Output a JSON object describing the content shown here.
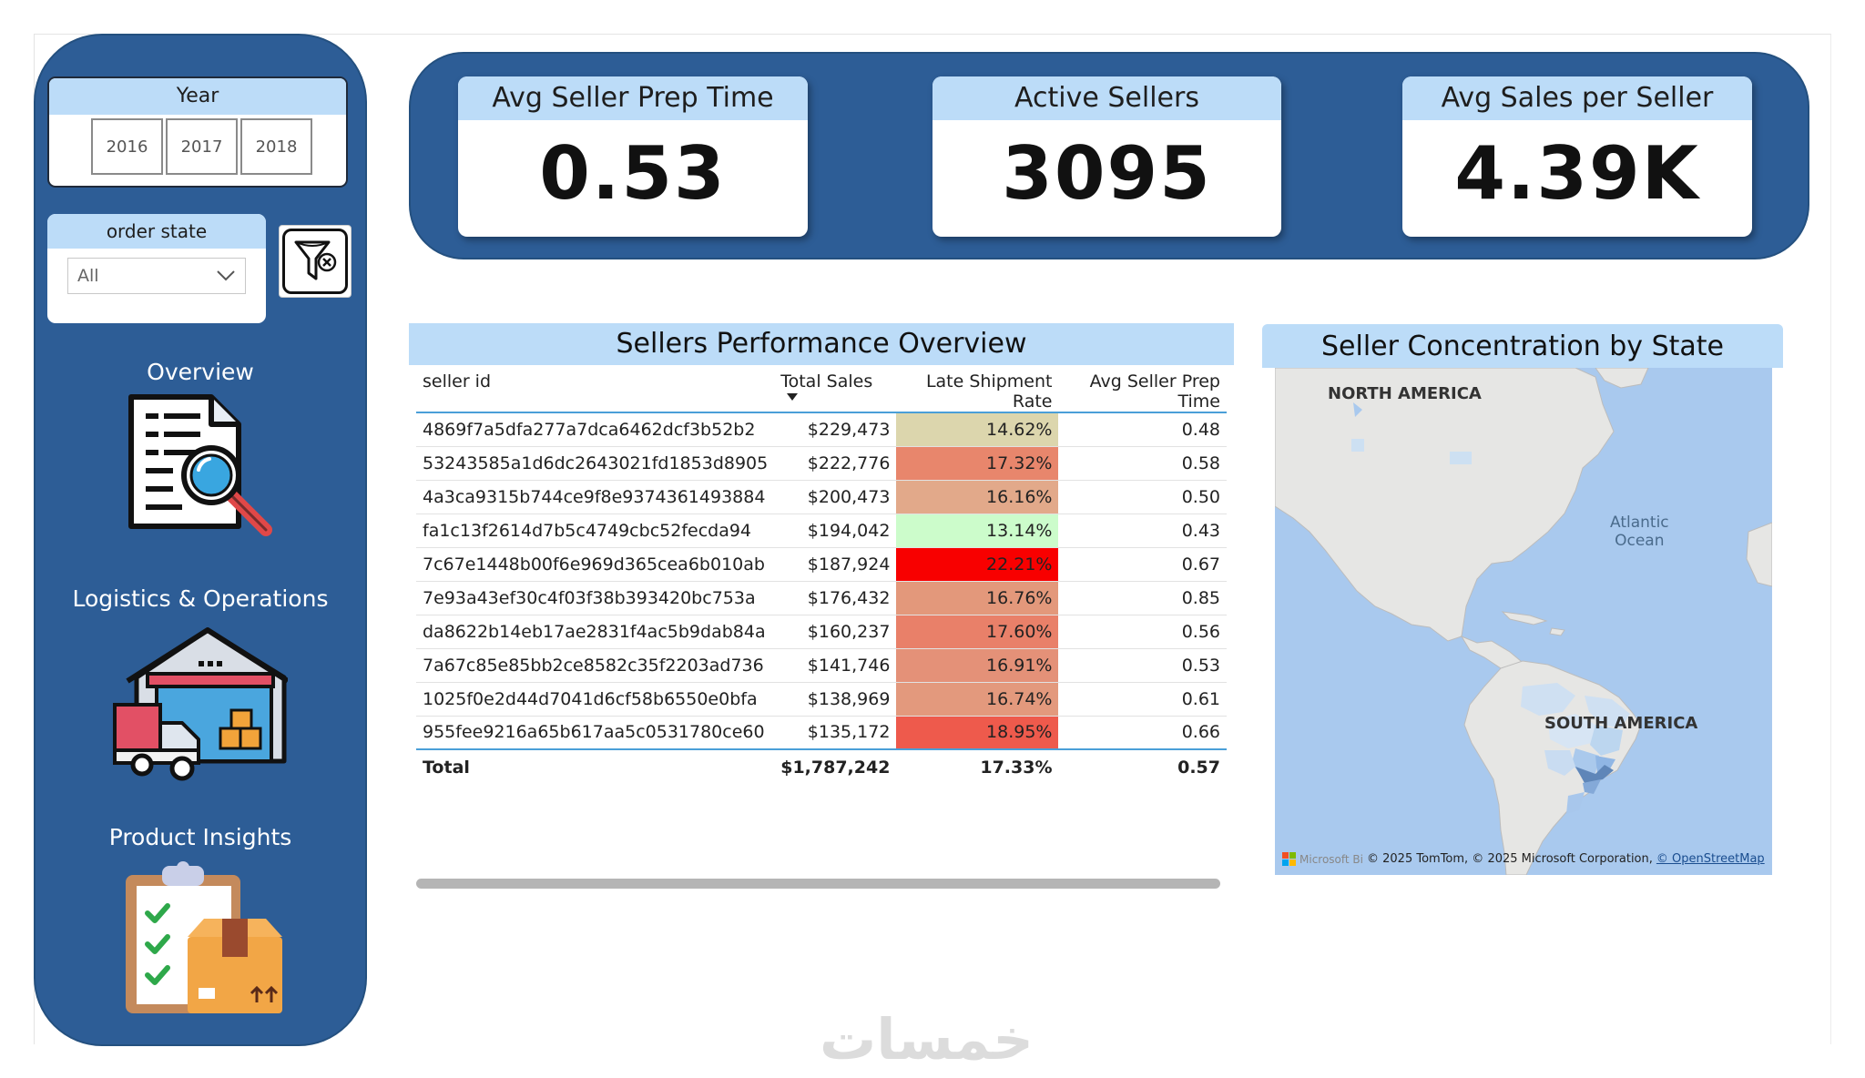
{
  "sidebar": {
    "year_slicer": {
      "title": "Year",
      "years": [
        "2016",
        "2017",
        "2018"
      ]
    },
    "state_slicer": {
      "title": "order state",
      "selected": "All"
    },
    "nav": [
      {
        "label": "Overview",
        "icon": "report-magnifier-icon"
      },
      {
        "label": "Logistics & Operations",
        "icon": "warehouse-truck-icon"
      },
      {
        "label": "Product Insights",
        "icon": "clipboard-box-icon"
      }
    ]
  },
  "kpis": [
    {
      "title": "Avg Seller Prep Time",
      "value": "0.53"
    },
    {
      "title": "Active Sellers",
      "value": "3095"
    },
    {
      "title": "Avg Sales per Seller",
      "value": "4.39K"
    }
  ],
  "table": {
    "title": "Sellers Performance Overview",
    "columns": [
      "seller id",
      "Total Sales",
      "Late Shipment Rate",
      "Avg Seller Prep Time"
    ],
    "rows": [
      {
        "seller_id": "4869f7a5dfa277a7dca6462dcf3b52b2",
        "total_sales": "$229,473",
        "late_rate": "14.62%",
        "prep_time": "0.48",
        "heat": "#dcd6ad"
      },
      {
        "seller_id": "53243585a1d6dc2643021fd1853d8905",
        "total_sales": "$222,776",
        "late_rate": "17.32%",
        "prep_time": "0.58",
        "heat": "#e8866c"
      },
      {
        "seller_id": "4a3ca9315b744ce9f8e9374361493884",
        "total_sales": "$200,473",
        "late_rate": "16.16%",
        "prep_time": "0.50",
        "heat": "#e2a98a"
      },
      {
        "seller_id": "fa1c13f2614d7b5c4749cbc52fecda94",
        "total_sales": "$194,042",
        "late_rate": "13.14%",
        "prep_time": "0.43",
        "heat": "#ccfccb"
      },
      {
        "seller_id": "7c67e1448b00f6e969d365cea6b010ab",
        "total_sales": "$187,924",
        "late_rate": "22.21%",
        "prep_time": "0.67",
        "heat": "#f80000"
      },
      {
        "seller_id": "7e93a43ef30c4f03f38b393420bc753a",
        "total_sales": "$176,432",
        "late_rate": "16.76%",
        "prep_time": "0.85",
        "heat": "#e3987b"
      },
      {
        "seller_id": "da8622b14eb17ae2831f4ac5b9dab84a",
        "total_sales": "$160,237",
        "late_rate": "17.60%",
        "prep_time": "0.56",
        "heat": "#e98069"
      },
      {
        "seller_id": "7a67c85e85bb2ce8582c35f2203ad736",
        "total_sales": "$141,746",
        "late_rate": "16.91%",
        "prep_time": "0.53",
        "heat": "#e49178"
      },
      {
        "seller_id": "1025f0e2d44d7041d6cf58b6550e0bfa",
        "total_sales": "$138,969",
        "late_rate": "16.74%",
        "prep_time": "0.61",
        "heat": "#e3997d"
      },
      {
        "seller_id": "955fee9216a65b617aa5c0531780ce60",
        "total_sales": "$135,172",
        "late_rate": "18.95%",
        "prep_time": "0.66",
        "heat": "#ee5a4c"
      }
    ],
    "total": {
      "label": "Total",
      "total_sales": "$1,787,242",
      "late_rate": "17.33%",
      "prep_time": "0.57"
    }
  },
  "map": {
    "title": "Seller Concentration by State",
    "labels": {
      "north_america": "NORTH AMERICA",
      "south_america": "SOUTH AMERICA",
      "ocean_1": "Atlantic",
      "ocean_2": "Ocean"
    },
    "attribution": {
      "brand": "Microsoft Bi",
      "text": "© 2025 TomTom, © 2025 Microsoft Corporation,",
      "link": "© OpenStreetMap"
    }
  },
  "watermark": "خمسات"
}
